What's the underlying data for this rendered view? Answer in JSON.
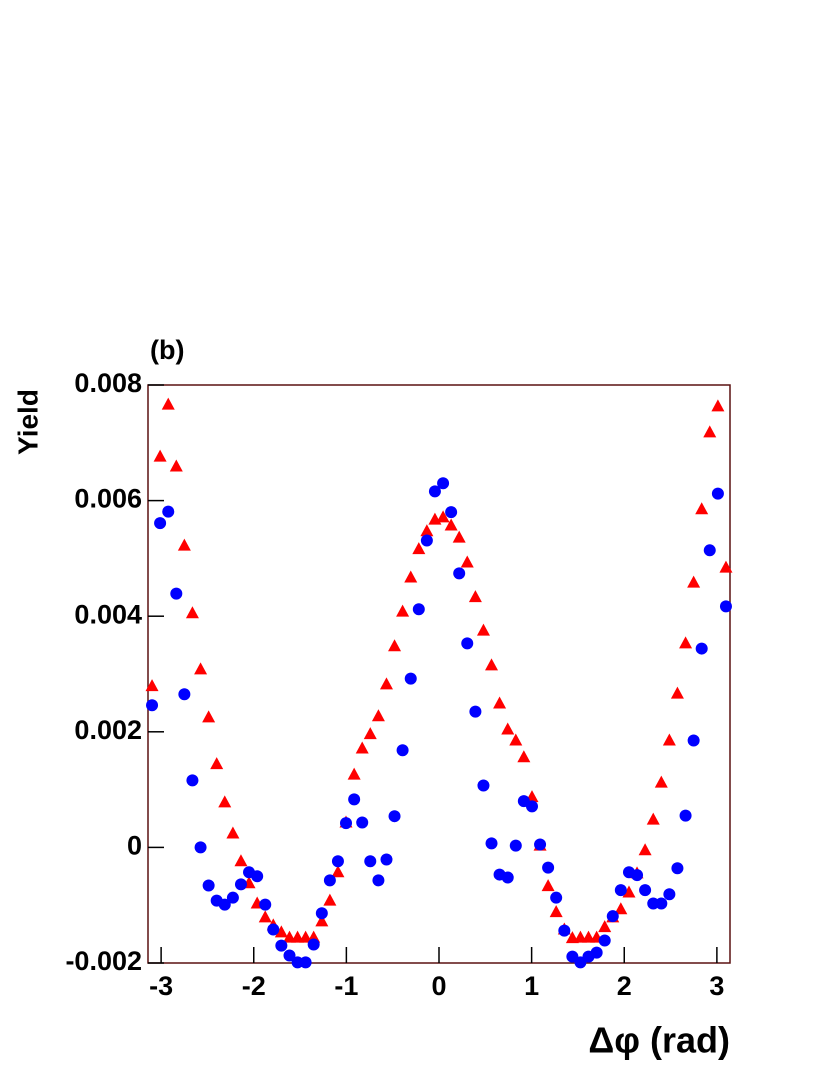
{
  "chart_data": {
    "type": "scatter",
    "title": "(b)",
    "y_label": "Yield",
    "x_label": "Δφ (rad)",
    "xlim": [
      -3.1416,
      3.1416
    ],
    "ylim": [
      -0.002,
      0.008
    ],
    "xticks": [
      -3,
      -2,
      -1,
      0,
      1,
      2,
      3
    ],
    "yticks": [
      -0.002,
      0,
      0.002,
      0.004,
      0.006,
      0.008
    ],
    "x": [
      -3.098,
      -3.011,
      -2.923,
      -2.836,
      -2.749,
      -2.662,
      -2.574,
      -2.487,
      -2.4,
      -2.313,
      -2.225,
      -2.138,
      -2.051,
      -1.963,
      -1.876,
      -1.789,
      -1.702,
      -1.614,
      -1.527,
      -1.44,
      -1.353,
      -1.265,
      -1.178,
      -1.091,
      -1.004,
      -0.916,
      -0.829,
      -0.742,
      -0.654,
      -0.567,
      -0.48,
      -0.393,
      -0.305,
      -0.218,
      -0.131,
      -0.044,
      0.044,
      0.131,
      0.218,
      0.305,
      0.393,
      0.48,
      0.567,
      0.654,
      0.742,
      0.829,
      0.916,
      1.004,
      1.091,
      1.178,
      1.265,
      1.353,
      1.44,
      1.527,
      1.614,
      1.702,
      1.789,
      1.876,
      1.963,
      2.051,
      2.138,
      2.225,
      2.313,
      2.4,
      2.487,
      2.574,
      2.662,
      2.749,
      2.836,
      2.923,
      3.011,
      3.098
    ],
    "series": [
      {
        "color": "#ff0000",
        "marker": "triangle",
        "values": [
          0.00279,
          0.00676,
          0.00766,
          0.00659,
          0.00522,
          0.00405,
          0.00308,
          0.00225,
          0.00144,
          0.00078,
          0.00024,
          -0.00024,
          -0.00062,
          -0.00097,
          -0.00121,
          -0.00135,
          -0.00147,
          -0.00156,
          -0.00156,
          -0.00156,
          -0.00156,
          -0.00128,
          -0.00092,
          -0.00043,
          0.00043,
          0.00126,
          0.00171,
          0.00196,
          0.00227,
          0.00282,
          0.00348,
          0.00408,
          0.00467,
          0.00516,
          0.00547,
          0.00567,
          0.00571,
          0.00557,
          0.00536,
          0.00493,
          0.00433,
          0.00375,
          0.00315,
          0.00249,
          0.00204,
          0.00185,
          0.00156,
          0.00087,
          3e-05,
          -0.00067,
          -0.00112,
          -0.00142,
          -0.00157,
          -0.00156,
          -0.00156,
          -0.00156,
          -0.00138,
          -0.00121,
          -0.00107,
          -0.00078,
          -0.00045,
          -5e-05,
          0.00048,
          0.00112,
          0.00185,
          0.00266,
          0.00353,
          0.00458,
          0.00585,
          0.00718,
          0.00763,
          0.00484
        ]
      },
      {
        "color": "#0000ff",
        "marker": "circle",
        "values": [
          0.00246,
          0.00561,
          0.00581,
          0.00439,
          0.00265,
          0.00116,
          0.0,
          -0.00066,
          -0.00092,
          -0.00099,
          -0.00087,
          -0.00064,
          -0.00043,
          -0.0005,
          -0.00099,
          -0.00142,
          -0.0017,
          -0.00187,
          -0.00199,
          -0.00199,
          -0.00168,
          -0.00114,
          -0.00057,
          -0.00024,
          0.00042,
          0.00083,
          0.00043,
          -0.00024,
          -0.00057,
          -0.00021,
          0.00054,
          0.00168,
          0.00292,
          0.00412,
          0.00531,
          0.00616,
          0.0063,
          0.0058,
          0.00474,
          0.00353,
          0.00235,
          0.00107,
          7e-05,
          -0.00047,
          -0.00052,
          3e-05,
          0.0008,
          0.00071,
          5e-05,
          -0.00035,
          -0.00087,
          -0.00144,
          -0.00189,
          -0.00199,
          -0.00189,
          -0.00182,
          -0.00161,
          -0.00119,
          -0.00074,
          -0.00043,
          -0.00048,
          -0.00074,
          -0.00097,
          -0.00097,
          -0.00081,
          -0.00036,
          0.00055,
          0.00185,
          0.00344,
          0.00514,
          0.00612,
          0.00417
        ]
      }
    ]
  }
}
